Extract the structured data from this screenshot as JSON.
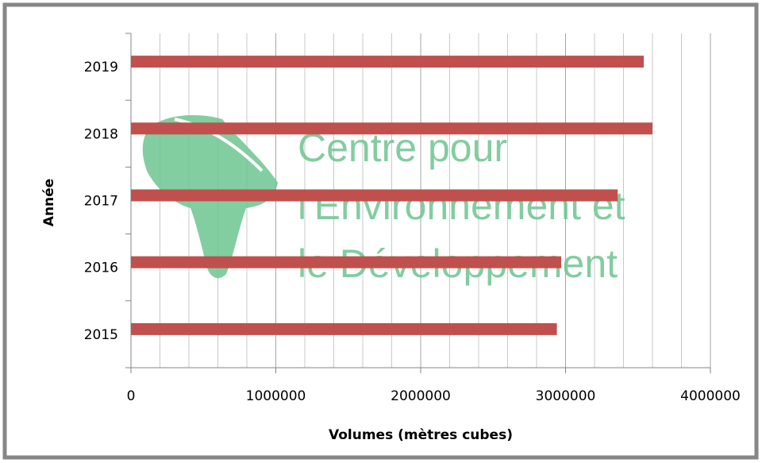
{
  "chart_data": {
    "type": "barh",
    "categories": [
      "2015",
      "2016",
      "2017",
      "2018",
      "2019"
    ],
    "values": [
      2940000,
      2970000,
      3360000,
      3600000,
      3540000
    ],
    "color": "#c0504d",
    "xlabel": "Volumes (mètres cubes)",
    "ylabel": "Année",
    "xlim": [
      0,
      4000000
    ],
    "xticks": [
      0,
      1000000,
      2000000,
      3000000,
      4000000
    ],
    "x_minor_ticks": [
      200000,
      400000,
      600000,
      800000,
      1200000,
      1400000,
      1600000,
      1800000,
      2200000,
      2400000,
      2600000,
      2800000,
      3200000,
      3400000,
      3600000,
      3800000
    ],
    "grid": true,
    "watermark": [
      "Centre pour",
      "l'Environnement et",
      "le Développement"
    ]
  }
}
